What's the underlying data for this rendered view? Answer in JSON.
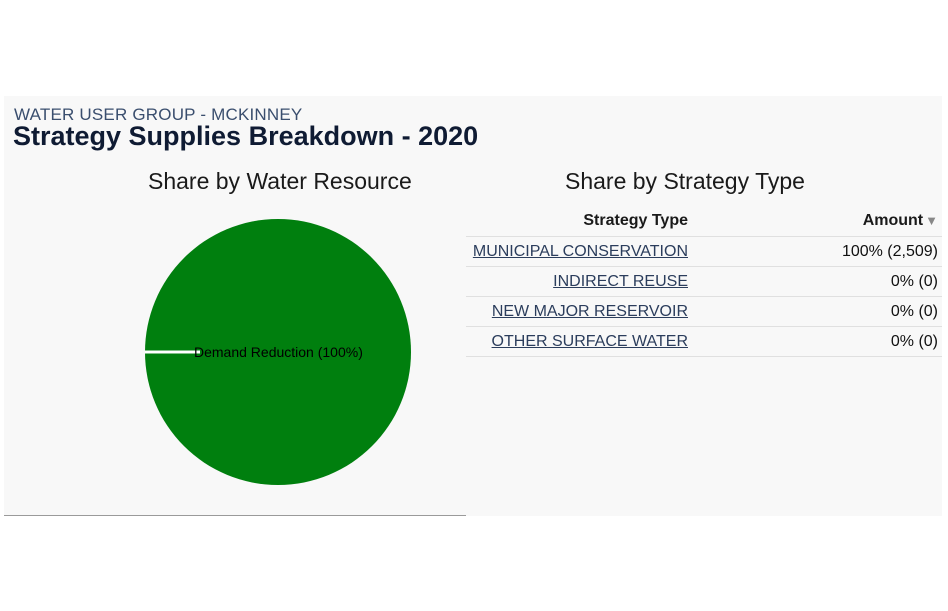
{
  "header": {
    "subtitle": "WATER USER GROUP - MCKINNEY",
    "title": "Strategy Supplies Breakdown - 2020"
  },
  "left_section": {
    "title": "Share by Water Resource"
  },
  "right_section": {
    "title": "Share by Strategy Type"
  },
  "table": {
    "columns": {
      "strategy_type": "Strategy Type",
      "amount": "Amount"
    },
    "sort_indicator": "▼",
    "rows": [
      {
        "name": "MUNICIPAL CONSERVATION",
        "amount": "100% (2,509)"
      },
      {
        "name": "INDIRECT REUSE",
        "amount": "0% (0)"
      },
      {
        "name": "NEW MAJOR RESERVOIR",
        "amount": "0% (0)"
      },
      {
        "name": "OTHER SURFACE WATER",
        "amount": "0% (0)"
      }
    ]
  },
  "chart_data": {
    "type": "pie",
    "title": "Share by Water Resource",
    "slices": [
      {
        "label": "Demand Reduction (100%)",
        "value": 100,
        "color": "#007f0e"
      }
    ]
  }
}
